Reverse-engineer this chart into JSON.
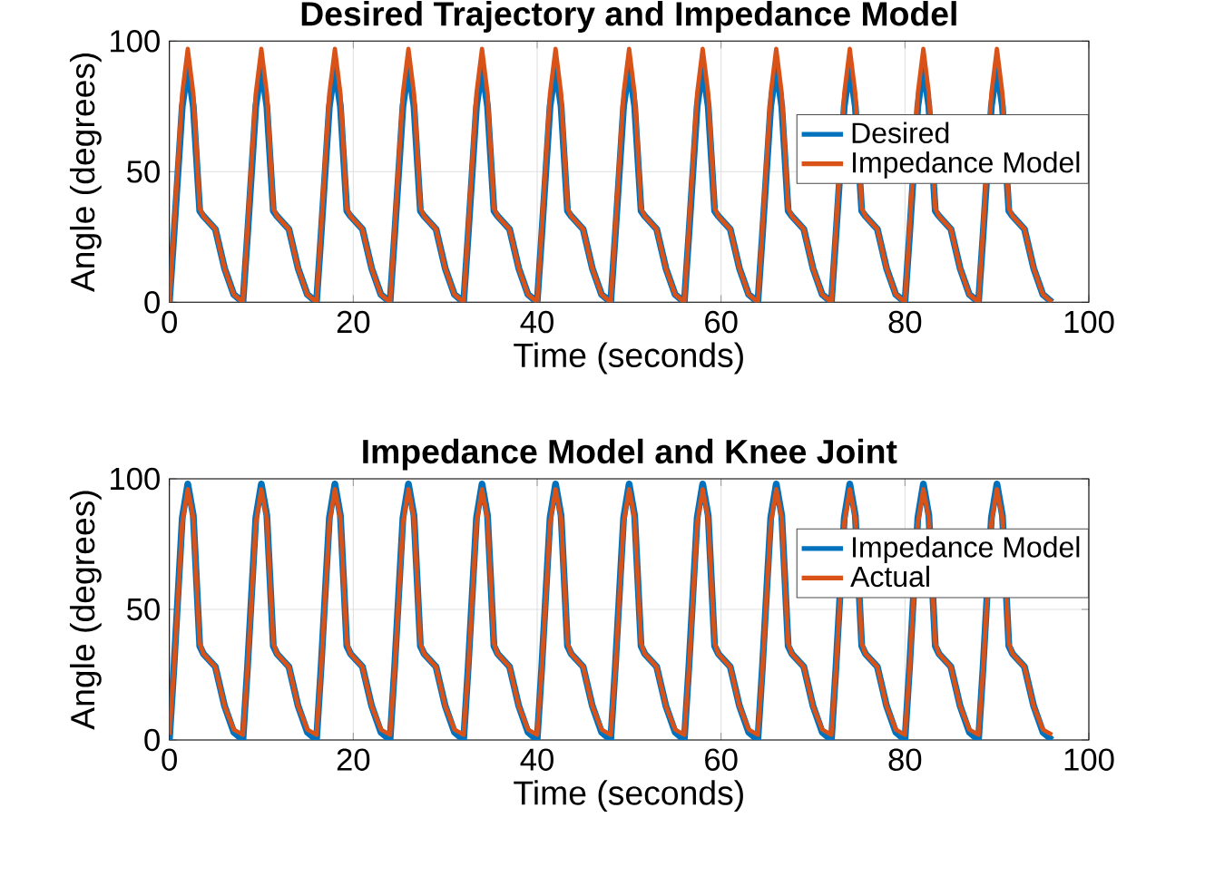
{
  "chart_data": [
    {
      "type": "line",
      "title": "Desired Trajectory and Impedance Model",
      "xlabel": "Time (seconds)",
      "ylabel": "Angle (degrees)",
      "x": [
        0,
        0.5,
        1.4,
        2,
        2.6,
        3.3,
        3.7,
        5,
        6,
        7,
        8,
        8.5,
        9.4,
        10,
        10.6,
        11.3,
        11.7,
        13,
        14,
        15,
        16,
        16.5,
        17.4,
        18,
        18.6,
        19.3,
        19.7,
        21,
        22,
        23,
        24,
        24.5,
        25.4,
        26,
        26.6,
        27.3,
        27.7,
        29,
        30,
        31,
        32,
        32.5,
        33.4,
        34,
        34.6,
        35.3,
        35.7,
        37,
        38,
        39,
        40,
        40.5,
        41.4,
        42,
        42.6,
        43.3,
        43.7,
        45,
        46,
        47,
        48,
        48.5,
        49.4,
        50,
        50.6,
        51.3,
        51.7,
        53,
        54,
        55,
        56,
        56.5,
        57.4,
        58,
        58.6,
        59.3,
        59.7,
        61,
        62,
        63,
        64,
        64.5,
        65.4,
        66,
        66.6,
        67.3,
        67.7,
        69,
        70,
        71,
        72,
        72.5,
        73.4,
        74,
        74.6,
        75.3,
        75.7,
        77,
        78,
        79,
        80,
        80.5,
        81.4,
        82,
        82.6,
        83.3,
        83.7,
        85,
        86,
        87,
        88,
        88.5,
        89.4,
        90,
        90.6,
        91.3,
        91.7,
        93,
        94,
        95,
        96
      ],
      "series": [
        {
          "name": "Desired",
          "color": "#0072bd",
          "values": [
            0,
            26,
            75,
            90,
            75,
            35,
            33,
            28,
            13,
            3,
            0,
            26,
            75,
            90,
            75,
            35,
            33,
            28,
            13,
            3,
            0,
            26,
            75,
            90,
            75,
            35,
            33,
            28,
            13,
            3,
            0,
            26,
            75,
            90,
            75,
            35,
            33,
            28,
            13,
            3,
            0,
            26,
            75,
            90,
            75,
            35,
            33,
            28,
            13,
            3,
            0,
            26,
            75,
            90,
            75,
            35,
            33,
            28,
            13,
            3,
            0,
            26,
            75,
            90,
            75,
            35,
            33,
            28,
            13,
            3,
            0,
            26,
            75,
            90,
            75,
            35,
            33,
            28,
            13,
            3,
            0,
            26,
            75,
            90,
            75,
            35,
            33,
            28,
            13,
            3,
            0,
            26,
            75,
            90,
            75,
            35,
            33,
            28,
            13,
            3,
            0,
            26,
            75,
            90,
            75,
            35,
            33,
            28,
            13,
            3,
            0,
            26,
            75,
            90,
            75,
            35,
            33,
            28,
            13,
            3,
            0
          ]
        },
        {
          "name": "Impedance Model",
          "color": "#d95319",
          "values": [
            0,
            28,
            80,
            97,
            80,
            36,
            33,
            28,
            13,
            3,
            0,
            28,
            80,
            97,
            80,
            36,
            33,
            28,
            13,
            3,
            0,
            28,
            80,
            97,
            80,
            36,
            33,
            28,
            13,
            3,
            0,
            28,
            80,
            97,
            80,
            36,
            33,
            28,
            13,
            3,
            0,
            28,
            80,
            97,
            80,
            36,
            33,
            28,
            13,
            3,
            0,
            28,
            80,
            97,
            80,
            36,
            33,
            28,
            13,
            3,
            0,
            28,
            80,
            97,
            80,
            36,
            33,
            28,
            13,
            3,
            0,
            28,
            80,
            97,
            80,
            36,
            33,
            28,
            13,
            3,
            0,
            28,
            80,
            97,
            80,
            36,
            33,
            28,
            13,
            3,
            0,
            28,
            80,
            97,
            80,
            36,
            33,
            28,
            13,
            3,
            0,
            28,
            80,
            97,
            80,
            36,
            33,
            28,
            13,
            3,
            0,
            28,
            80,
            97,
            80,
            36,
            33,
            28,
            13,
            3,
            0
          ]
        }
      ],
      "xlim": [
        0,
        100
      ],
      "ylim": [
        0,
        100
      ],
      "xticks": [
        0,
        20,
        40,
        60,
        80,
        100
      ],
      "yticks": [
        0,
        50,
        100
      ],
      "grid": true,
      "legend": "top right"
    },
    {
      "type": "line",
      "title": "Impedance Model and Knee Joint",
      "xlabel": "Time (seconds)",
      "ylabel": "Angle (degrees)",
      "x": [
        0,
        0.5,
        1.4,
        2,
        2.6,
        3.3,
        3.7,
        5,
        6,
        7,
        8,
        8.5,
        9.4,
        10,
        10.6,
        11.3,
        11.7,
        13,
        14,
        15,
        16,
        16.5,
        17.4,
        18,
        18.6,
        19.3,
        19.7,
        21,
        22,
        23,
        24,
        24.5,
        25.4,
        26,
        26.6,
        27.3,
        27.7,
        29,
        30,
        31,
        32,
        32.5,
        33.4,
        34,
        34.6,
        35.3,
        35.7,
        37,
        38,
        39,
        40,
        40.5,
        41.4,
        42,
        42.6,
        43.3,
        43.7,
        45,
        46,
        47,
        48,
        48.5,
        49.4,
        50,
        50.6,
        51.3,
        51.7,
        53,
        54,
        55,
        56,
        56.5,
        57.4,
        58,
        58.6,
        59.3,
        59.7,
        61,
        62,
        63,
        64,
        64.5,
        65.4,
        66,
        66.6,
        67.3,
        67.7,
        69,
        70,
        71,
        72,
        72.5,
        73.4,
        74,
        74.6,
        75.3,
        75.7,
        77,
        78,
        79,
        80,
        80.5,
        81.4,
        82,
        82.6,
        83.3,
        83.7,
        85,
        86,
        87,
        88,
        88.5,
        89.4,
        90,
        90.6,
        91.3,
        91.7,
        93,
        94,
        95,
        96
      ],
      "series": [
        {
          "name": "Impedance Model",
          "color": "#0072bd",
          "values": [
            0,
            28,
            85,
            98,
            86,
            36,
            33,
            28,
            13,
            3,
            0,
            28,
            85,
            98,
            86,
            36,
            33,
            28,
            13,
            3,
            0,
            28,
            85,
            98,
            86,
            36,
            33,
            28,
            13,
            3,
            0,
            28,
            85,
            98,
            86,
            36,
            33,
            28,
            13,
            3,
            0,
            28,
            85,
            98,
            86,
            36,
            33,
            28,
            13,
            3,
            0,
            28,
            85,
            98,
            86,
            36,
            33,
            28,
            13,
            3,
            0,
            28,
            85,
            98,
            86,
            36,
            33,
            28,
            13,
            3,
            0,
            28,
            85,
            98,
            86,
            36,
            33,
            28,
            13,
            3,
            0,
            28,
            85,
            98,
            86,
            36,
            33,
            28,
            13,
            3,
            0,
            28,
            85,
            98,
            86,
            36,
            33,
            28,
            13,
            3,
            0,
            28,
            85,
            98,
            86,
            36,
            33,
            28,
            13,
            3,
            0,
            28,
            85,
            98,
            86,
            36,
            33,
            28,
            13,
            3,
            0
          ]
        },
        {
          "name": "Actual",
          "color": "#d95319",
          "values": [
            2,
            27,
            83,
            96,
            85,
            37,
            33,
            28,
            13,
            4,
            2,
            27,
            83,
            96,
            85,
            37,
            33,
            28,
            13,
            4,
            2,
            27,
            83,
            96,
            85,
            37,
            33,
            28,
            13,
            4,
            2,
            27,
            83,
            96,
            85,
            37,
            33,
            28,
            13,
            4,
            2,
            27,
            83,
            96,
            85,
            37,
            33,
            28,
            13,
            4,
            2,
            27,
            83,
            96,
            85,
            37,
            33,
            28,
            13,
            4,
            2,
            27,
            83,
            96,
            85,
            37,
            33,
            28,
            13,
            4,
            2,
            27,
            83,
            96,
            85,
            37,
            33,
            28,
            13,
            4,
            2,
            27,
            83,
            96,
            85,
            37,
            33,
            28,
            13,
            4,
            2,
            27,
            83,
            96,
            85,
            37,
            33,
            28,
            13,
            4,
            2,
            27,
            83,
            96,
            85,
            37,
            33,
            28,
            13,
            4,
            2,
            27,
            83,
            96,
            85,
            37,
            33,
            28,
            13,
            4,
            2
          ]
        }
      ],
      "xlim": [
        0,
        100
      ],
      "ylim": [
        0,
        100
      ],
      "xticks": [
        0,
        20,
        40,
        60,
        80,
        100
      ],
      "yticks": [
        0,
        50,
        100
      ],
      "grid": true,
      "legend": "top right"
    }
  ]
}
